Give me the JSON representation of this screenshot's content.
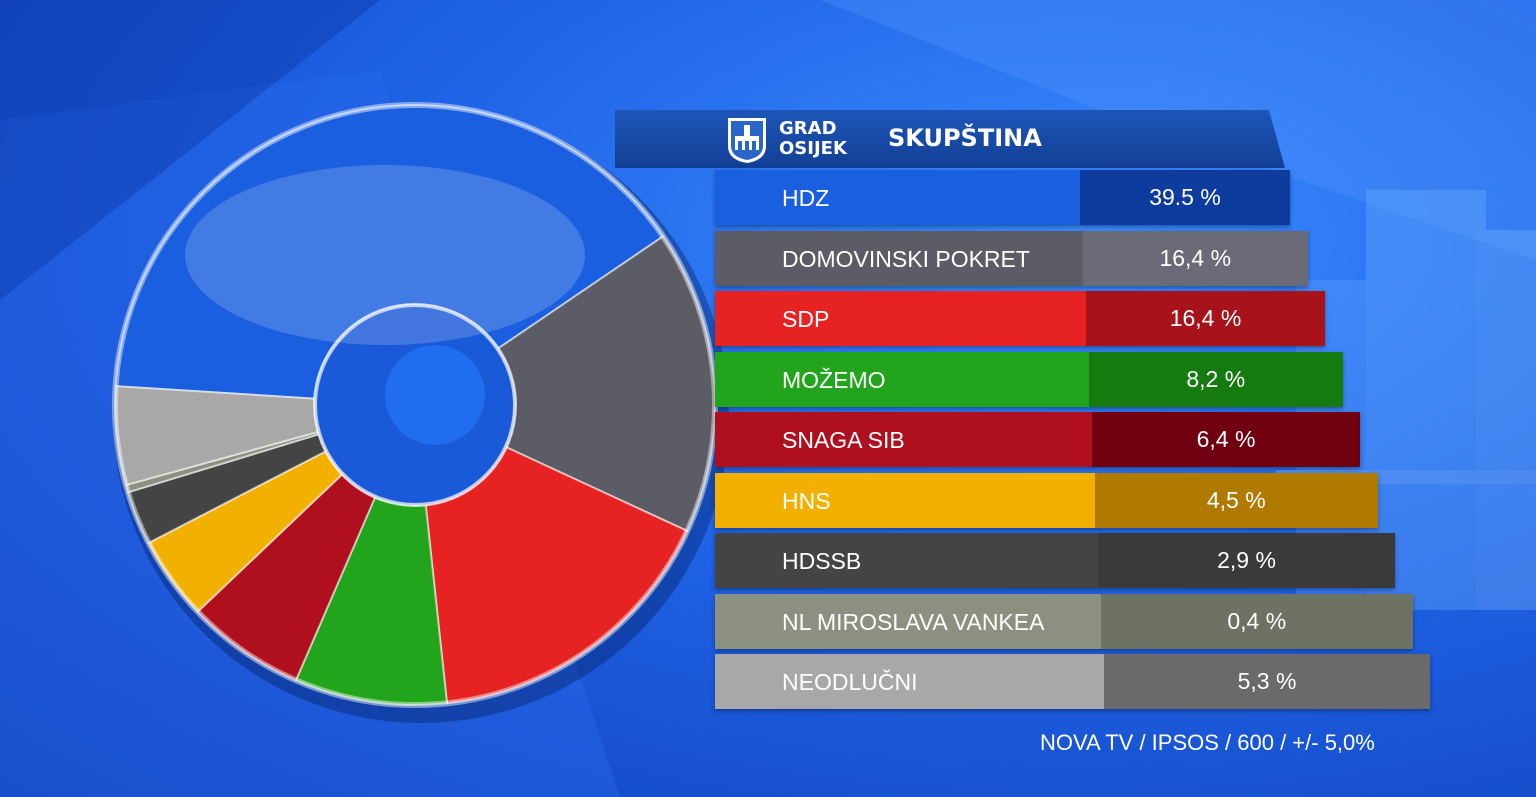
{
  "header": {
    "logo_line1": "GRAD",
    "logo_line2": "OSIJEK",
    "title": "SKUPŠTINA"
  },
  "chart_data": {
    "type": "pie",
    "style": "3d-donut",
    "categories": [
      "HDZ",
      "DOMOVINSKI POKRET",
      "SDP",
      "MOŽEMO",
      "SNAGA SIB",
      "HNS",
      "HDSSB",
      "NL MIROSLAVA VANKEA",
      "NEODLUČNI"
    ],
    "values": [
      39.5,
      16.4,
      16.4,
      8.2,
      6.4,
      4.5,
      2.9,
      0.4,
      5.3
    ],
    "value_labels": [
      "39.5 %",
      "16,4 %",
      "16,4 %",
      "8,2 %",
      "6,4 %",
      "4,5 %",
      "2,9 %",
      "0,4 %",
      "5,3 %"
    ],
    "colors": [
      "#1a5fe0",
      "#5c5c66",
      "#e62222",
      "#22a51c",
      "#b0101e",
      "#f2b000",
      "#444444",
      "#8c9080",
      "#a8a8a8"
    ],
    "value_colors": [
      "#0d3c9e",
      "#6a6a78",
      "#a8121a",
      "#157a10",
      "#700010",
      "#b07a00",
      "#3a3a3a",
      "#6e7262",
      "#6a6a6a"
    ]
  },
  "footer": "NOVA TV / IPSOS / 600 / +/- 5,0%"
}
